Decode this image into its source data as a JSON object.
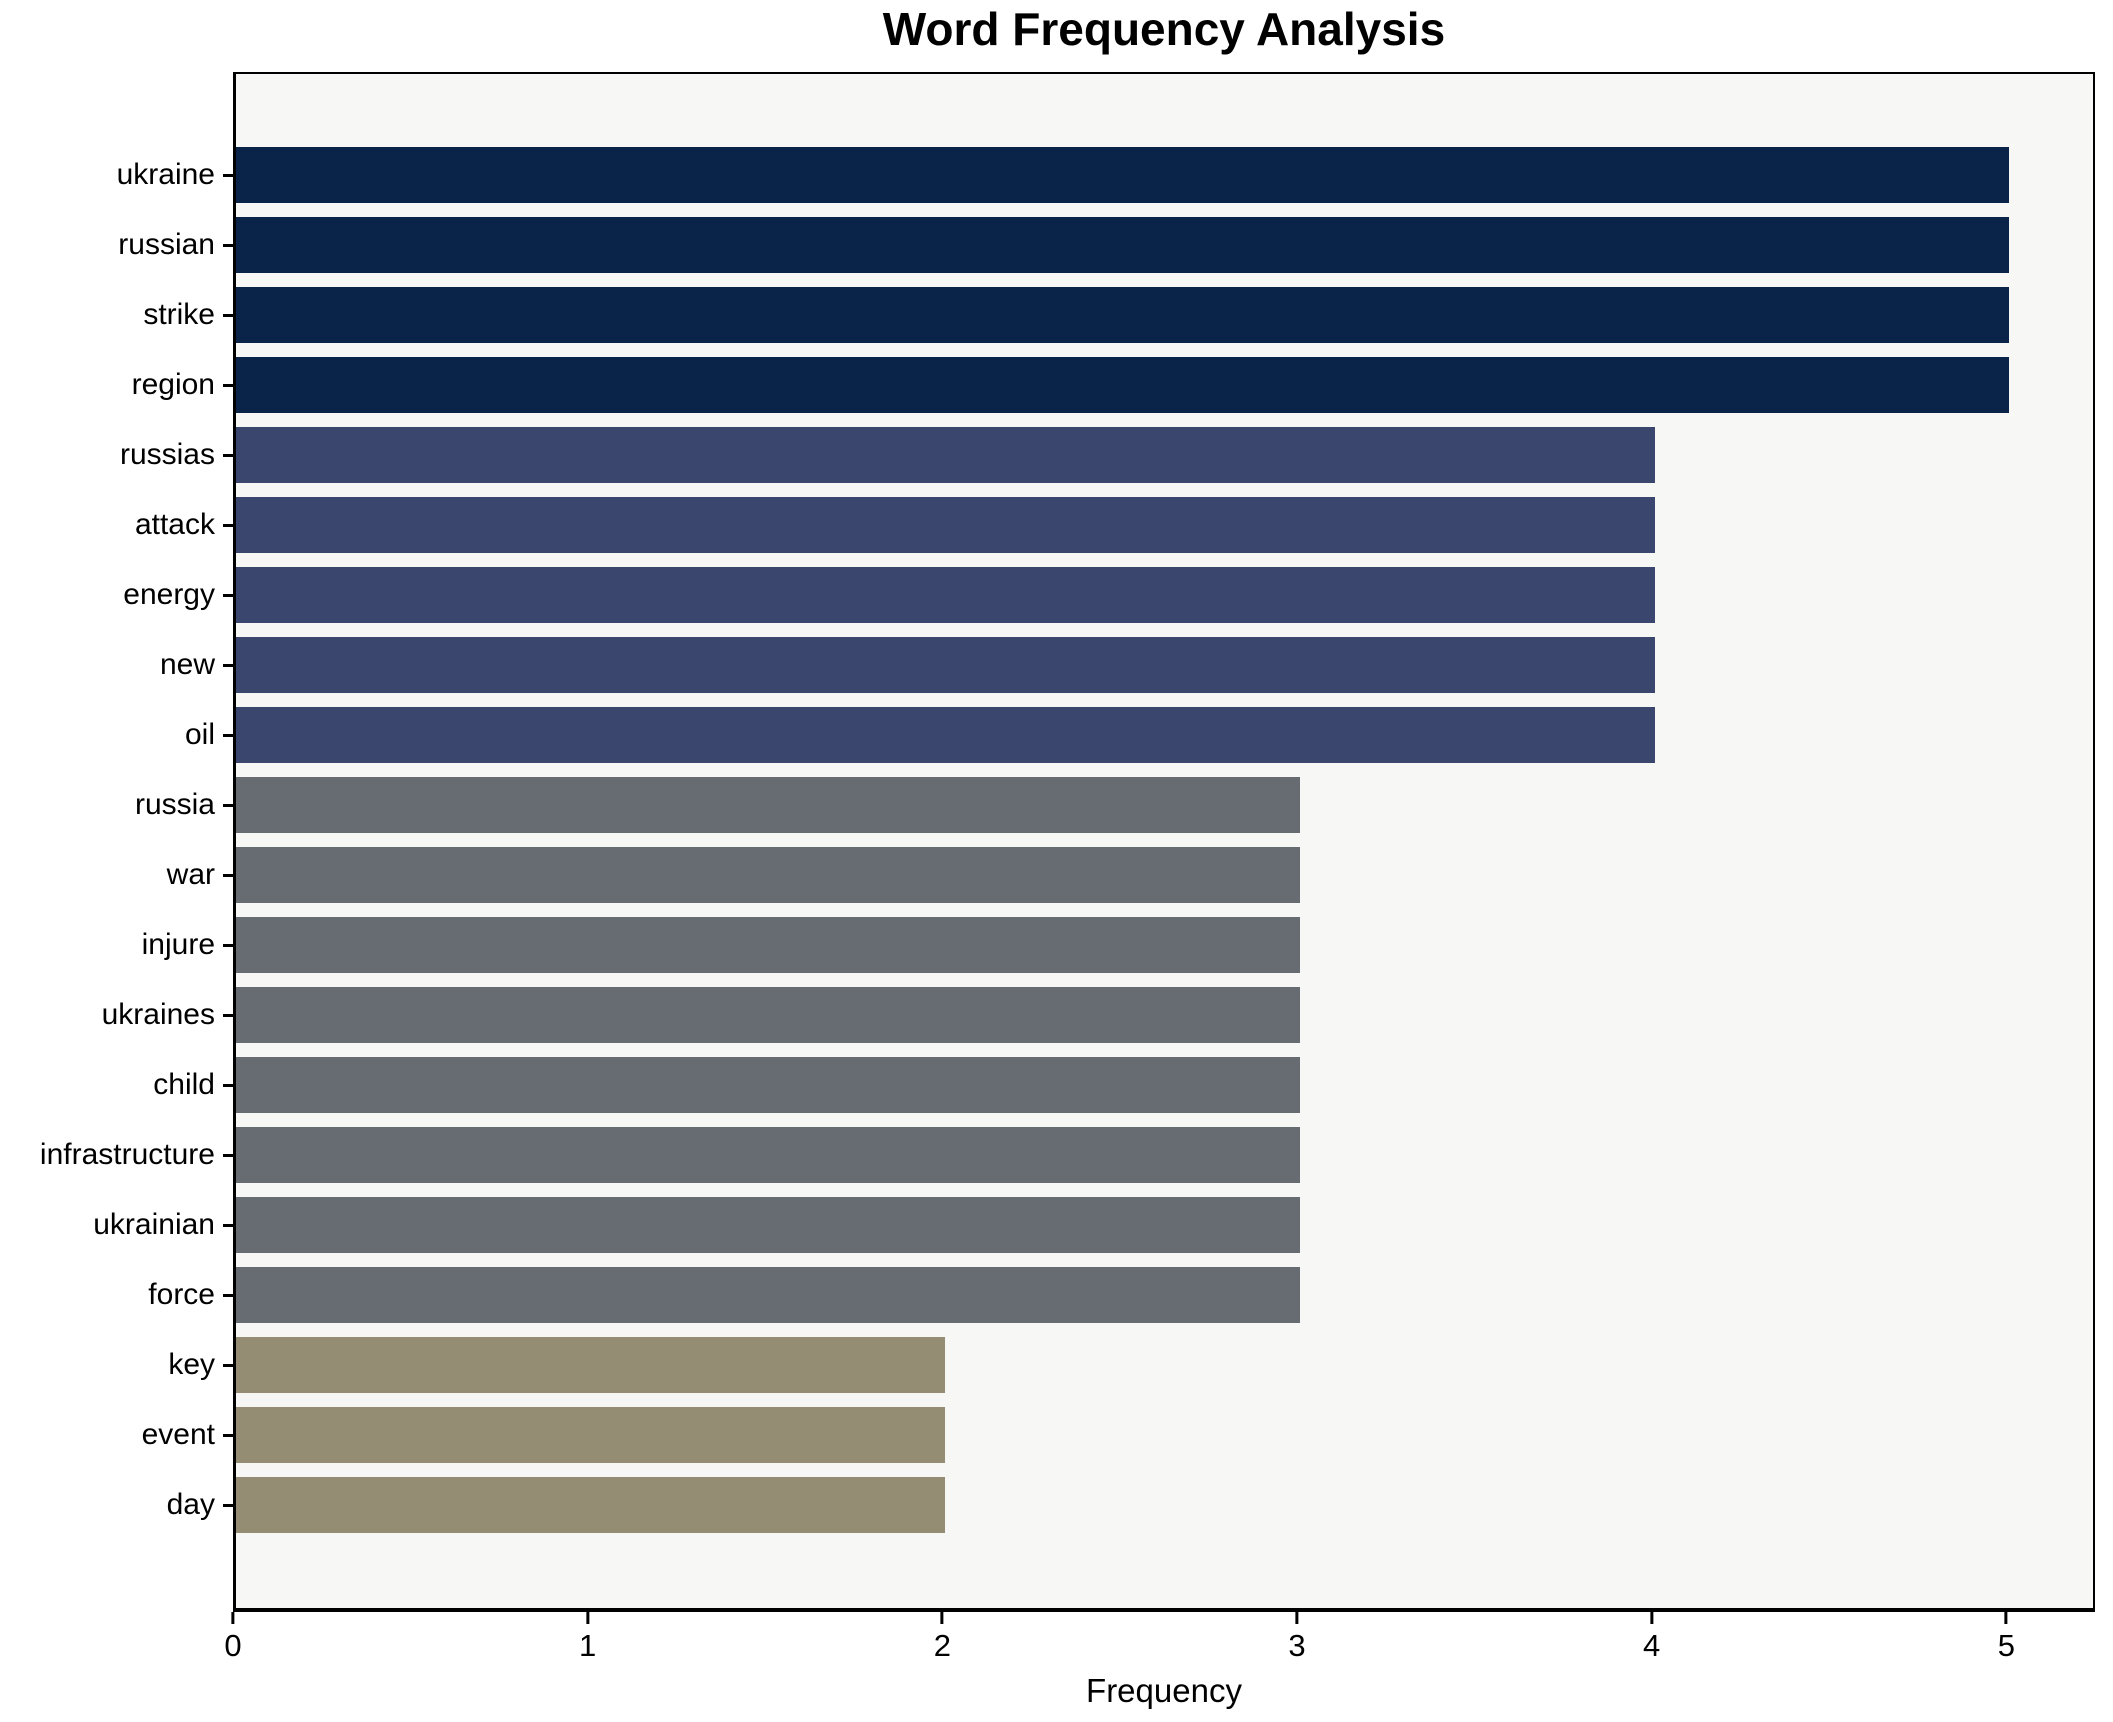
{
  "title": "Word Frequency Analysis",
  "chart_data": {
    "type": "bar",
    "orientation": "horizontal",
    "title": "Word Frequency Analysis",
    "xlabel": "Frequency",
    "ylabel": "",
    "grid": false,
    "legend": false,
    "xlim": [
      0,
      5.25
    ],
    "x_ticks": [
      0,
      1,
      2,
      3,
      4,
      5
    ],
    "categories": [
      "ukraine",
      "russian",
      "strike",
      "region",
      "russias",
      "attack",
      "energy",
      "new",
      "oil",
      "russia",
      "war",
      "injure",
      "ukraines",
      "child",
      "infrastructure",
      "ukrainian",
      "force",
      "key",
      "event",
      "day"
    ],
    "values": [
      5,
      5,
      5,
      5,
      4,
      4,
      4,
      4,
      4,
      3,
      3,
      3,
      3,
      3,
      3,
      3,
      3,
      2,
      2,
      2
    ],
    "value_colors": {
      "5": "#0a2348",
      "4": "#3a466e",
      "3": "#676b72",
      "2": "#948c73"
    },
    "plot_background": "#f7f7f5",
    "figure_background": "#ffffff",
    "axis_color": "#000000",
    "text_color": "#000000"
  }
}
